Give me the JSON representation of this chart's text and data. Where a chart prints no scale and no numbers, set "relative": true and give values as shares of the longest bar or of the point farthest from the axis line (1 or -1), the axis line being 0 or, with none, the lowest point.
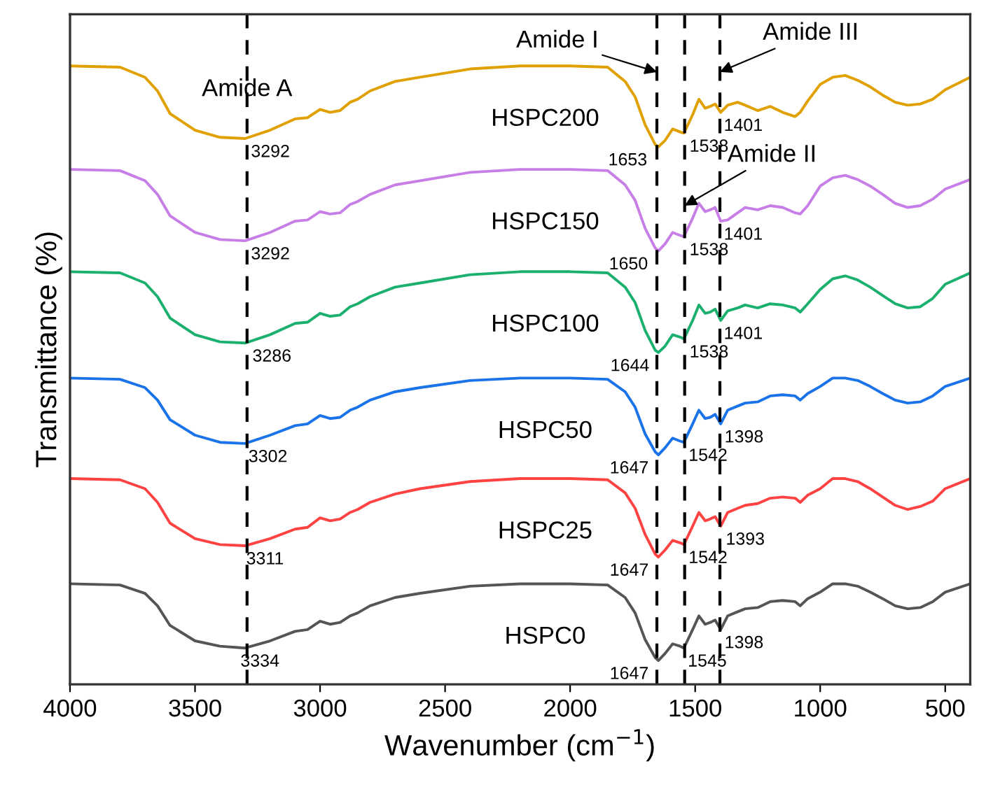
{
  "chart_data": {
    "type": "line",
    "relative": true,
    "xlabel": "Wavenumber (cm$^{−1}$)",
    "ylabel": "Transmittance (%)",
    "xlim": [
      4000,
      400
    ],
    "xticks": [
      4000,
      3500,
      3000,
      2500,
      2000,
      1500,
      1000,
      500
    ],
    "grid": false,
    "legend": false,
    "marker": "none",
    "line_style": "solid",
    "x": [
      4000,
      3800,
      3700,
      3650,
      3600,
      3500,
      3400,
      3300,
      3200,
      3100,
      3050,
      3000,
      2960,
      2920,
      2880,
      2850,
      2800,
      2700,
      2600,
      2400,
      2200,
      2000,
      1850,
      1780,
      1740,
      1700,
      1660,
      1647,
      1620,
      1590,
      1560,
      1545,
      1510,
      1485,
      1460,
      1440,
      1420,
      1398,
      1370,
      1330,
      1300,
      1250,
      1200,
      1150,
      1100,
      1080,
      1050,
      1000,
      950,
      900,
      850,
      800,
      750,
      700,
      650,
      600,
      550,
      500,
      400
    ],
    "series": [
      {
        "name": "HSPC200",
        "color": "#dfa000",
        "values": [
          1.0,
          0.998,
          0.981,
          0.958,
          0.92,
          0.892,
          0.88,
          0.878,
          0.892,
          0.911,
          0.913,
          0.927,
          0.922,
          0.925,
          0.939,
          0.944,
          0.958,
          0.974,
          0.981,
          0.995,
          1.0,
          1.0,
          0.998,
          0.974,
          0.948,
          0.901,
          0.868,
          0.864,
          0.875,
          0.894,
          0.889,
          0.887,
          0.918,
          0.944,
          0.929,
          0.932,
          0.936,
          0.922,
          0.934,
          0.939,
          0.934,
          0.925,
          0.932,
          0.922,
          0.915,
          0.922,
          0.941,
          0.969,
          0.981,
          0.984,
          0.976,
          0.965,
          0.951,
          0.939,
          0.934,
          0.936,
          0.944,
          0.96,
          0.981
        ]
      },
      {
        "name": "HSPC150",
        "color": "#c77ee6",
        "values": [
          0.826,
          0.824,
          0.807,
          0.784,
          0.748,
          0.72,
          0.708,
          0.706,
          0.72,
          0.739,
          0.741,
          0.755,
          0.751,
          0.753,
          0.767,
          0.772,
          0.784,
          0.8,
          0.807,
          0.821,
          0.826,
          0.826,
          0.824,
          0.8,
          0.774,
          0.727,
          0.694,
          0.689,
          0.701,
          0.72,
          0.715,
          0.713,
          0.744,
          0.769,
          0.755,
          0.758,
          0.762,
          0.739,
          0.741,
          0.753,
          0.762,
          0.758,
          0.765,
          0.762,
          0.753,
          0.751,
          0.765,
          0.798,
          0.812,
          0.816,
          0.809,
          0.798,
          0.784,
          0.769,
          0.762,
          0.765,
          0.776,
          0.793,
          0.809
        ]
      },
      {
        "name": "HSPC100",
        "color": "#1bb06e",
        "values": [
          0.654,
          0.652,
          0.635,
          0.612,
          0.576,
          0.548,
          0.536,
          0.534,
          0.548,
          0.567,
          0.569,
          0.584,
          0.579,
          0.581,
          0.595,
          0.6,
          0.612,
          0.628,
          0.635,
          0.649,
          0.654,
          0.654,
          0.652,
          0.628,
          0.602,
          0.555,
          0.522,
          0.518,
          0.529,
          0.548,
          0.544,
          0.541,
          0.572,
          0.598,
          0.584,
          0.586,
          0.591,
          0.572,
          0.588,
          0.593,
          0.598,
          0.593,
          0.6,
          0.598,
          0.593,
          0.586,
          0.6,
          0.624,
          0.642,
          0.647,
          0.64,
          0.628,
          0.614,
          0.6,
          0.593,
          0.595,
          0.609,
          0.633,
          0.652
        ]
      },
      {
        "name": "HSPC50",
        "color": "#1a73e8",
        "values": [
          0.475,
          0.473,
          0.459,
          0.438,
          0.405,
          0.379,
          0.367,
          0.365,
          0.379,
          0.395,
          0.398,
          0.412,
          0.407,
          0.409,
          0.421,
          0.426,
          0.438,
          0.452,
          0.459,
          0.471,
          0.475,
          0.475,
          0.473,
          0.452,
          0.426,
          0.381,
          0.351,
          0.346,
          0.358,
          0.374,
          0.369,
          0.367,
          0.398,
          0.421,
          0.407,
          0.409,
          0.414,
          0.398,
          0.421,
          0.428,
          0.433,
          0.435,
          0.445,
          0.447,
          0.445,
          0.438,
          0.449,
          0.461,
          0.475,
          0.475,
          0.471,
          0.461,
          0.449,
          0.438,
          0.433,
          0.435,
          0.445,
          0.461,
          0.475
        ]
      },
      {
        "name": "HSPC25",
        "color": "#ff4242",
        "values": [
          0.306,
          0.304,
          0.289,
          0.266,
          0.231,
          0.205,
          0.195,
          0.193,
          0.205,
          0.221,
          0.224,
          0.24,
          0.235,
          0.238,
          0.249,
          0.254,
          0.266,
          0.28,
          0.289,
          0.301,
          0.306,
          0.306,
          0.304,
          0.282,
          0.256,
          0.212,
          0.179,
          0.174,
          0.186,
          0.202,
          0.198,
          0.195,
          0.226,
          0.249,
          0.235,
          0.238,
          0.242,
          0.226,
          0.249,
          0.256,
          0.261,
          0.264,
          0.273,
          0.275,
          0.273,
          0.266,
          0.278,
          0.289,
          0.306,
          0.306,
          0.301,
          0.289,
          0.275,
          0.261,
          0.254,
          0.259,
          0.268,
          0.289,
          0.306
        ]
      },
      {
        "name": "HSPC0",
        "color": "#555555",
        "values": [
          0.129,
          0.127,
          0.113,
          0.092,
          0.059,
          0.033,
          0.024,
          0.021,
          0.033,
          0.049,
          0.052,
          0.066,
          0.061,
          0.064,
          0.075,
          0.08,
          0.092,
          0.106,
          0.113,
          0.125,
          0.129,
          0.129,
          0.127,
          0.106,
          0.08,
          0.035,
          0.005,
          0.0,
          0.012,
          0.028,
          0.024,
          0.021,
          0.052,
          0.075,
          0.061,
          0.064,
          0.068,
          0.052,
          0.075,
          0.082,
          0.087,
          0.089,
          0.099,
          0.101,
          0.099,
          0.092,
          0.104,
          0.115,
          0.129,
          0.129,
          0.125,
          0.115,
          0.104,
          0.092,
          0.087,
          0.089,
          0.099,
          0.115,
          0.129
        ]
      }
    ],
    "ref_lines": [
      {
        "axis": "x",
        "value": 3292,
        "color": "#000000",
        "line_style": "dashed"
      },
      {
        "axis": "x",
        "value": 1653,
        "color": "#000000",
        "line_style": "dashed"
      },
      {
        "axis": "x",
        "value": 1542,
        "color": "#000000",
        "line_style": "dashed"
      },
      {
        "axis": "x",
        "value": 1401,
        "color": "#000000",
        "line_style": "dashed"
      }
    ],
    "annotations": [
      {
        "text": "Amide A",
        "x": 3292,
        "y": 0.96
      },
      {
        "text": "Amide I",
        "x": 1653,
        "y": 0.99
      },
      {
        "text": "Amide II",
        "x": 1542,
        "y": 0.765
      },
      {
        "text": "Amide III",
        "x": 1401,
        "y": 0.99
      },
      {
        "text": "3292",
        "x": 3292,
        "y": 0.878
      },
      {
        "text": "3292",
        "x": 3292,
        "y": 0.706
      },
      {
        "text": "3286",
        "x": 3286,
        "y": 0.534
      },
      {
        "text": "3302",
        "x": 3302,
        "y": 0.365
      },
      {
        "text": "3311",
        "x": 3311,
        "y": 0.193
      },
      {
        "text": "3334",
        "x": 3334,
        "y": 0.021
      },
      {
        "text": "1653",
        "x": 1653,
        "y": 0.864
      },
      {
        "text": "1538",
        "x": 1538,
        "y": 0.887
      },
      {
        "text": "1401",
        "x": 1401,
        "y": 0.922
      },
      {
        "text": "1650",
        "x": 1650,
        "y": 0.689
      },
      {
        "text": "1538",
        "x": 1538,
        "y": 0.713
      },
      {
        "text": "1401",
        "x": 1401,
        "y": 0.739
      },
      {
        "text": "1644",
        "x": 1644,
        "y": 0.518
      },
      {
        "text": "1538",
        "x": 1538,
        "y": 0.541
      },
      {
        "text": "1401",
        "x": 1401,
        "y": 0.572
      },
      {
        "text": "1647",
        "x": 1647,
        "y": 0.346
      },
      {
        "text": "1542",
        "x": 1542,
        "y": 0.367
      },
      {
        "text": "1398",
        "x": 1398,
        "y": 0.398
      },
      {
        "text": "1647",
        "x": 1647,
        "y": 0.174
      },
      {
        "text": "1542",
        "x": 1542,
        "y": 0.195
      },
      {
        "text": "1393",
        "x": 1393,
        "y": 0.226
      },
      {
        "text": "1647",
        "x": 1647,
        "y": 0.0
      },
      {
        "text": "1545",
        "x": 1545,
        "y": 0.021
      },
      {
        "text": "1398",
        "x": 1398,
        "y": 0.052
      }
    ]
  }
}
